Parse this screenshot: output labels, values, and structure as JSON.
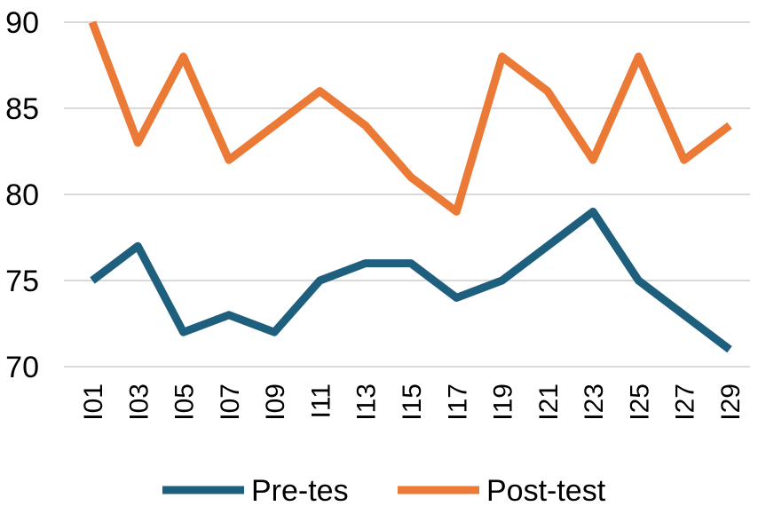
{
  "chart_data": {
    "type": "line",
    "categories": [
      "I01",
      "I03",
      "I05",
      "I07",
      "I09",
      "I11",
      "I13",
      "I15",
      "I17",
      "I19",
      "I21",
      "I23",
      "I25",
      "I27",
      "I29"
    ],
    "series": [
      {
        "name": "Pre-tes",
        "color": "#1f5f7e",
        "values": [
          75,
          77,
          72,
          73,
          72,
          75,
          76,
          76,
          74,
          75,
          77,
          79,
          75,
          73,
          71
        ]
      },
      {
        "name": "Post-test",
        "color": "#ec7a37",
        "values": [
          90,
          83,
          88,
          82,
          84,
          86,
          84,
          81,
          79,
          88,
          86,
          82,
          88,
          82,
          84
        ]
      }
    ],
    "y_ticks": [
      "70",
      "75",
      "80",
      "85",
      "90"
    ],
    "ylim": [
      70,
      90
    ],
    "xlabel": "",
    "ylabel": "",
    "grid": true,
    "legend_position": "bottom"
  }
}
